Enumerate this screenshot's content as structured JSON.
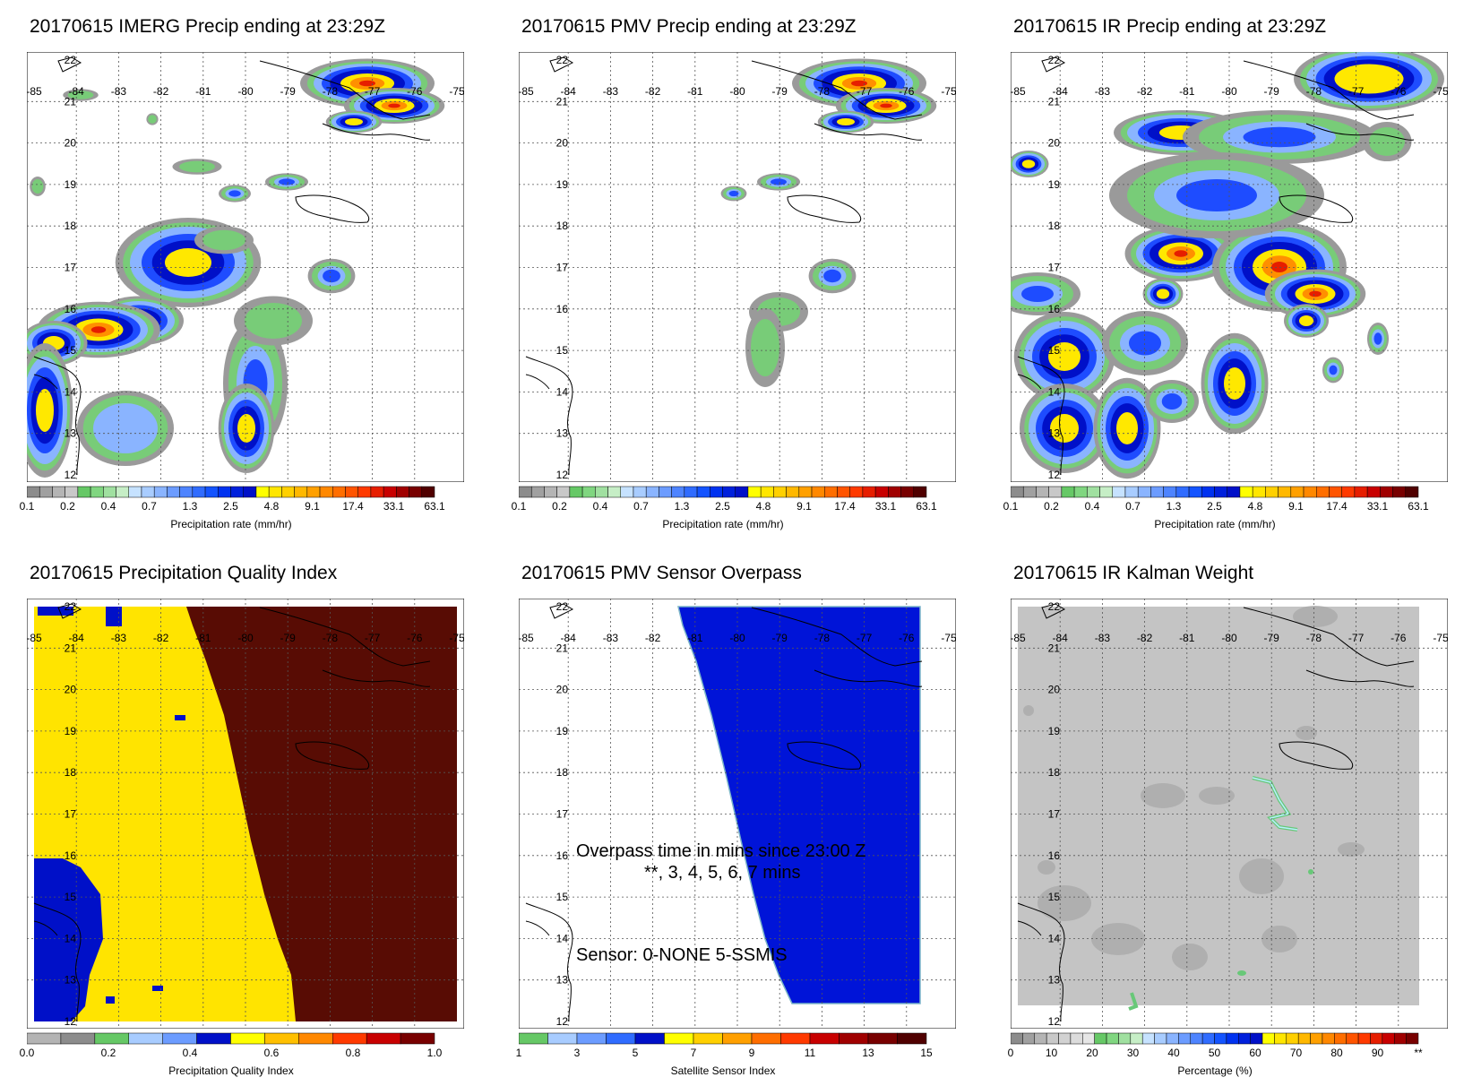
{
  "date": "20170615",
  "map": {
    "lon_labels": [
      "-85",
      "-84",
      "-83",
      "-82",
      "-81",
      "-80",
      "-79",
      "-78",
      "-77",
      "-76",
      "-75"
    ],
    "lat_labels": [
      "22",
      "21",
      "20",
      "19",
      "18",
      "17",
      "16",
      "15",
      "14",
      "13",
      "12"
    ]
  },
  "panels": [
    {
      "id": "imerg",
      "title": "20170615 IMERG Precip ending at 23:29Z",
      "colorbar": {
        "title": "Precipitation rate (mm/hr)",
        "tick_labels": [
          "0.1",
          "0.2",
          "0.4",
          "0.7",
          "1.3",
          "2.5",
          "4.8",
          "9.1",
          "17.4",
          "33.1",
          "63.1"
        ],
        "colors": [
          "#8c8c8c",
          "#a0a0a0",
          "#b4b4b4",
          "#c8c8c8",
          "#66c866",
          "#80d680",
          "#a0e0a0",
          "#c6eec6",
          "#c6e2ff",
          "#a8ccff",
          "#8ab4ff",
          "#6c9cff",
          "#4e84ff",
          "#306cff",
          "#1454ff",
          "#0032f0",
          "#0020dc",
          "#0010c8",
          "#ffff00",
          "#ffe600",
          "#ffd000",
          "#ffb800",
          "#ffa000",
          "#ff8800",
          "#ff6e00",
          "#ff5400",
          "#ff3a00",
          "#e61e00",
          "#c80000",
          "#a00000",
          "#780000",
          "#500000"
        ]
      }
    },
    {
      "id": "pmv",
      "title": "20170615 PMV Precip ending at 23:29Z",
      "colorbar": {
        "title": "Precipitation rate (mm/hr)",
        "tick_labels": [
          "0.1",
          "0.2",
          "0.4",
          "0.7",
          "1.3",
          "2.5",
          "4.8",
          "9.1",
          "17.4",
          "33.1",
          "63.1"
        ],
        "colors": [
          "#8c8c8c",
          "#a0a0a0",
          "#b4b4b4",
          "#c8c8c8",
          "#66c866",
          "#80d680",
          "#a0e0a0",
          "#c6eec6",
          "#c6e2ff",
          "#a8ccff",
          "#8ab4ff",
          "#6c9cff",
          "#4e84ff",
          "#306cff",
          "#1454ff",
          "#0032f0",
          "#0020dc",
          "#0010c8",
          "#ffff00",
          "#ffe600",
          "#ffd000",
          "#ffb800",
          "#ffa000",
          "#ff8800",
          "#ff6e00",
          "#ff5400",
          "#ff3a00",
          "#e61e00",
          "#c80000",
          "#a00000",
          "#780000",
          "#500000"
        ]
      }
    },
    {
      "id": "ir",
      "title": "20170615 IR Precip ending at 23:29Z",
      "colorbar": {
        "title": "Precipitation rate (mm/hr)",
        "tick_labels": [
          "0.1",
          "0.2",
          "0.4",
          "0.7",
          "1.3",
          "2.5",
          "4.8",
          "9.1",
          "17.4",
          "33.1",
          "63.1"
        ],
        "colors": [
          "#8c8c8c",
          "#a0a0a0",
          "#b4b4b4",
          "#c8c8c8",
          "#66c866",
          "#80d680",
          "#a0e0a0",
          "#c6eec6",
          "#c6e2ff",
          "#a8ccff",
          "#8ab4ff",
          "#6c9cff",
          "#4e84ff",
          "#306cff",
          "#1454ff",
          "#0032f0",
          "#0020dc",
          "#0010c8",
          "#ffff00",
          "#ffe600",
          "#ffd000",
          "#ffb800",
          "#ffa000",
          "#ff8800",
          "#ff6e00",
          "#ff5400",
          "#ff3a00",
          "#e61e00",
          "#c80000",
          "#a00000",
          "#780000",
          "#500000"
        ]
      }
    },
    {
      "id": "pqi",
      "title": "20170615 Precipitation Quality Index",
      "colorbar": {
        "title": "Precipitation Quality Index",
        "tick_labels": [
          "0.0",
          "0.2",
          "0.4",
          "0.6",
          "0.8",
          "1.0"
        ],
        "colors": [
          "#b4b4b4",
          "#8c8c8c",
          "#66c866",
          "#a8ccff",
          "#6c9cff",
          "#0010c8",
          "#ffff00",
          "#ffc000",
          "#ff8800",
          "#ff3a00",
          "#c80000",
          "#780000"
        ]
      }
    },
    {
      "id": "sensor",
      "title": "20170615 PMV Sensor Overpass",
      "overlay": {
        "line1": "Overpass time in mins since 23:00 Z",
        "line2": "**, 3, 4, 5, 6, 7 mins",
        "line3": "Sensor:   0-NONE  5-SSMIS"
      },
      "colorbar": {
        "title": "Satellite Sensor Index",
        "tick_labels": [
          "1",
          "3",
          "5",
          "7",
          "9",
          "11",
          "13",
          "15"
        ],
        "colors": [
          "#66c866",
          "#a8ccff",
          "#6c9cff",
          "#306cff",
          "#0010c8",
          "#ffff00",
          "#ffd000",
          "#ffa000",
          "#ff6e00",
          "#ff3a00",
          "#c80000",
          "#a00000",
          "#780000",
          "#500000"
        ]
      }
    },
    {
      "id": "kalman",
      "title": "20170615 IR Kalman Weight",
      "colorbar": {
        "title": "Percentage (%)",
        "tick_labels": [
          "0",
          "10",
          "20",
          "30",
          "40",
          "50",
          "60",
          "70",
          "80",
          "90",
          "**"
        ],
        "colors": [
          "#8c8c8c",
          "#a0a0a0",
          "#b4b4b4",
          "#c8c8c8",
          "#d2d2d2",
          "#dcdcdc",
          "#e6e6e6",
          "#66c866",
          "#80d680",
          "#a0e0a0",
          "#c6eec6",
          "#c6e2ff",
          "#a8ccff",
          "#8ab4ff",
          "#6c9cff",
          "#4e84ff",
          "#306cff",
          "#1454ff",
          "#0032f0",
          "#0020dc",
          "#0010c8",
          "#ffff00",
          "#ffe600",
          "#ffd000",
          "#ffb800",
          "#ffa000",
          "#ff8800",
          "#ff6e00",
          "#ff5400",
          "#ff3a00",
          "#e61e00",
          "#c80000",
          "#a00000",
          "#780000"
        ]
      }
    }
  ]
}
